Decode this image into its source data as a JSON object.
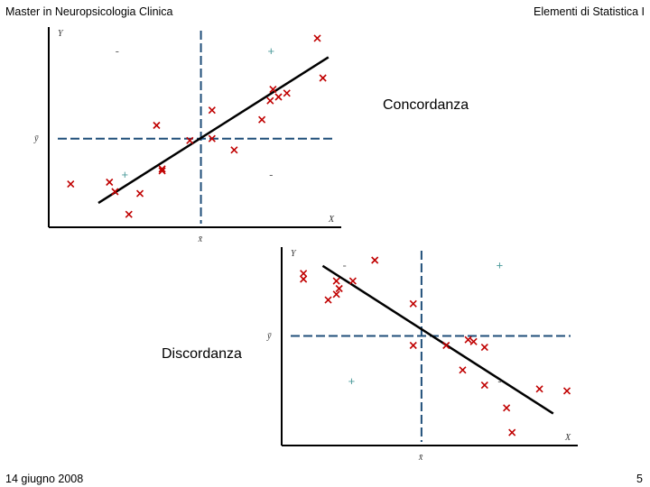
{
  "header": {
    "left": "Master in Neuropsicologia Clinica",
    "right": "Elementi di Statistica I"
  },
  "footer": {
    "date": "14 giugno 2008",
    "page": "5"
  },
  "colors": {
    "points": "#c00000",
    "mean_lines": "#1f4e79",
    "regression": "#000000",
    "axes": "#000000",
    "sign_plus": "#4a9a9a",
    "sign_minus": "#666666"
  },
  "chart_data": [
    {
      "type": "scatter",
      "title": "Concordanza",
      "xlabel": "X",
      "ylabel": "Y",
      "mean_x_label": "x̄",
      "mean_y_label": "ȳ",
      "xlim": [
        0,
        100
      ],
      "ylim": [
        0,
        100
      ],
      "mean_x": 51,
      "mean_y": 43,
      "quadrant_signs": {
        "top_left": "-",
        "top_right": "+",
        "bottom_left": "+",
        "bottom_right": "-"
      },
      "points": [
        {
          "x": 93,
          "y": 96
        },
        {
          "x": 95,
          "y": 75
        },
        {
          "x": 77,
          "y": 69
        },
        {
          "x": 76,
          "y": 63
        },
        {
          "x": 79,
          "y": 65
        },
        {
          "x": 82,
          "y": 67
        },
        {
          "x": 73,
          "y": 53
        },
        {
          "x": 55,
          "y": 58
        },
        {
          "x": 35,
          "y": 50
        },
        {
          "x": 47,
          "y": 42
        },
        {
          "x": 55,
          "y": 43
        },
        {
          "x": 63,
          "y": 37
        },
        {
          "x": 37,
          "y": 26
        },
        {
          "x": 37,
          "y": 27
        },
        {
          "x": 4,
          "y": 19
        },
        {
          "x": 18,
          "y": 20
        },
        {
          "x": 20,
          "y": 15
        },
        {
          "x": 29,
          "y": 14
        },
        {
          "x": 25,
          "y": 3
        }
      ],
      "regression_line": {
        "x": [
          14,
          97
        ],
        "y": [
          9,
          86
        ]
      }
    },
    {
      "type": "scatter",
      "title": "Discordanza",
      "xlabel": "X",
      "ylabel": "Y",
      "mean_x_label": "x̄",
      "mean_y_label": "ȳ",
      "xlim": [
        0,
        100
      ],
      "ylim": [
        0,
        100
      ],
      "mean_x": 47,
      "mean_y": 55,
      "quadrant_signs": {
        "top_left": "-",
        "top_right": "+",
        "bottom_left": "+",
        "bottom_right": "-"
      },
      "points": [
        {
          "x": 4,
          "y": 88
        },
        {
          "x": 4,
          "y": 85
        },
        {
          "x": 30,
          "y": 95
        },
        {
          "x": 16,
          "y": 84
        },
        {
          "x": 22,
          "y": 84
        },
        {
          "x": 17,
          "y": 80
        },
        {
          "x": 16,
          "y": 77
        },
        {
          "x": 13,
          "y": 74
        },
        {
          "x": 44,
          "y": 72
        },
        {
          "x": 44,
          "y": 50
        },
        {
          "x": 56,
          "y": 50
        },
        {
          "x": 64,
          "y": 53
        },
        {
          "x": 66,
          "y": 52
        },
        {
          "x": 70,
          "y": 49
        },
        {
          "x": 62,
          "y": 37
        },
        {
          "x": 70,
          "y": 29
        },
        {
          "x": 90,
          "y": 27
        },
        {
          "x": 100,
          "y": 26
        },
        {
          "x": 78,
          "y": 17
        },
        {
          "x": 80,
          "y": 4
        }
      ],
      "regression_line": {
        "x": [
          11,
          95
        ],
        "y": [
          92,
          14
        ]
      }
    }
  ],
  "labels": {
    "concordanza": "Concordanza",
    "discordanza": "Discordanza"
  }
}
